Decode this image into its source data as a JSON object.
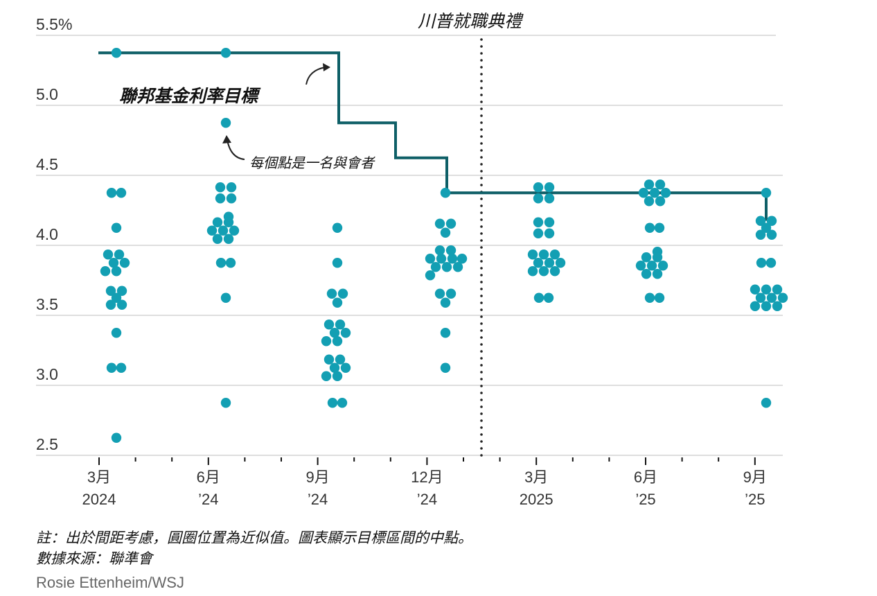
{
  "chart_data": {
    "type": "scatter",
    "title": "",
    "ylabel": "",
    "xlabel": "",
    "ylim": [
      2.5,
      5.5
    ],
    "y_ticks": [
      "5.5%",
      "5.0",
      "4.5",
      "4.0",
      "3.5",
      "3.0",
      "2.5"
    ],
    "y_tick_values": [
      5.5,
      5.0,
      4.5,
      4.0,
      3.5,
      3.0,
      2.5
    ],
    "x_ticks": [
      {
        "month": "3月",
        "year": "2024"
      },
      {
        "month": "6月",
        "year": "’24"
      },
      {
        "month": "9月",
        "year": "’24"
      },
      {
        "month": "12月",
        "year": "’24"
      },
      {
        "month": "3月",
        "year": "2025"
      },
      {
        "month": "6月",
        "year": "’25"
      },
      {
        "month": "9月",
        "year": "’25"
      }
    ],
    "grid": true,
    "series": [
      {
        "name": "每個點是一名與會者",
        "kind": "dot-plot",
        "color": "#139fb3",
        "meetings": [
          {
            "meeting": "2024-03",
            "dots": [
              5.375,
              4.375,
              4.375,
              4.125,
              3.875,
              3.875,
              3.875,
              3.875,
              3.875,
              3.875,
              3.625,
              3.625,
              3.625,
              3.625,
              3.625,
              3.375,
              3.125,
              3.125,
              2.625
            ]
          },
          {
            "meeting": "2024-06",
            "dots": [
              5.375,
              4.875,
              4.375,
              4.375,
              4.375,
              4.375,
              4.125,
              4.125,
              4.125,
              4.125,
              4.125,
              4.125,
              4.125,
              4.125,
              3.875,
              3.875,
              3.625,
              2.875
            ]
          },
          {
            "meeting": "2024-09",
            "dots": [
              4.125,
              3.875,
              3.625,
              3.625,
              3.625,
              3.375,
              3.375,
              3.375,
              3.375,
              3.375,
              3.375,
              3.125,
              3.125,
              3.125,
              3.125,
              3.125,
              3.125,
              2.875,
              2.875
            ]
          },
          {
            "meeting": "2024-12",
            "dots": [
              4.375,
              4.125,
              4.125,
              4.125,
              3.875,
              3.875,
              3.875,
              3.875,
              3.875,
              3.875,
              3.875,
              3.875,
              3.875,
              3.875,
              3.625,
              3.625,
              3.625,
              3.375,
              3.125
            ]
          },
          {
            "meeting": "2025-03",
            "dots": [
              4.375,
              4.375,
              4.375,
              4.375,
              4.125,
              4.125,
              4.125,
              4.125,
              3.875,
              3.875,
              3.875,
              3.875,
              3.875,
              3.875,
              3.875,
              3.875,
              3.875,
              3.625,
              3.625
            ]
          },
          {
            "meeting": "2025-06",
            "dots": [
              4.375,
              4.375,
              4.375,
              4.375,
              4.375,
              4.375,
              4.375,
              4.125,
              4.125,
              3.875,
              3.875,
              3.875,
              3.875,
              3.875,
              3.875,
              3.875,
              3.875,
              3.625,
              3.625
            ]
          },
          {
            "meeting": "2025-09",
            "dots": [
              4.375,
              4.125,
              4.125,
              4.125,
              4.125,
              4.125,
              3.875,
              3.875,
              3.625,
              3.625,
              3.625,
              3.625,
              3.625,
              3.625,
              3.625,
              3.625,
              3.625,
              2.875
            ]
          }
        ]
      },
      {
        "name": "聯邦基金利率目標",
        "kind": "step-line",
        "color": "#0e5f67",
        "points": [
          {
            "x": "2024-03 (start)",
            "y": 5.375
          },
          {
            "x": "2024-09",
            "y": 4.875
          },
          {
            "x": "2024-11",
            "y": 4.625
          },
          {
            "x": "2024-12",
            "y": 4.375
          },
          {
            "x": "2025-09",
            "y": 4.125
          }
        ]
      }
    ],
    "annotations": [
      {
        "text": "川普就職典禮",
        "type": "vertical-dotted-line",
        "x": "2025-01-20"
      },
      {
        "text": "聯邦基金利率目標",
        "target": "step-line"
      },
      {
        "text": "每個點是一名與會者",
        "target": "dot"
      }
    ]
  },
  "labels": {
    "inauguration": "川普就職典禮",
    "rate_target": "聯邦基金利率目標",
    "dot_meaning": "每個點是一名與會者"
  },
  "footer": {
    "note": "註：出於間距考慮，圓圈位置為近似值。圖表顯示目標區間的中點。",
    "source": "數據來源：聯準會",
    "credit": "Rosie Ettenheim/WSJ"
  },
  "colors": {
    "dot": "#139fb3",
    "line": "#0e5f67",
    "grid": "#dedede",
    "text": "#222222"
  }
}
